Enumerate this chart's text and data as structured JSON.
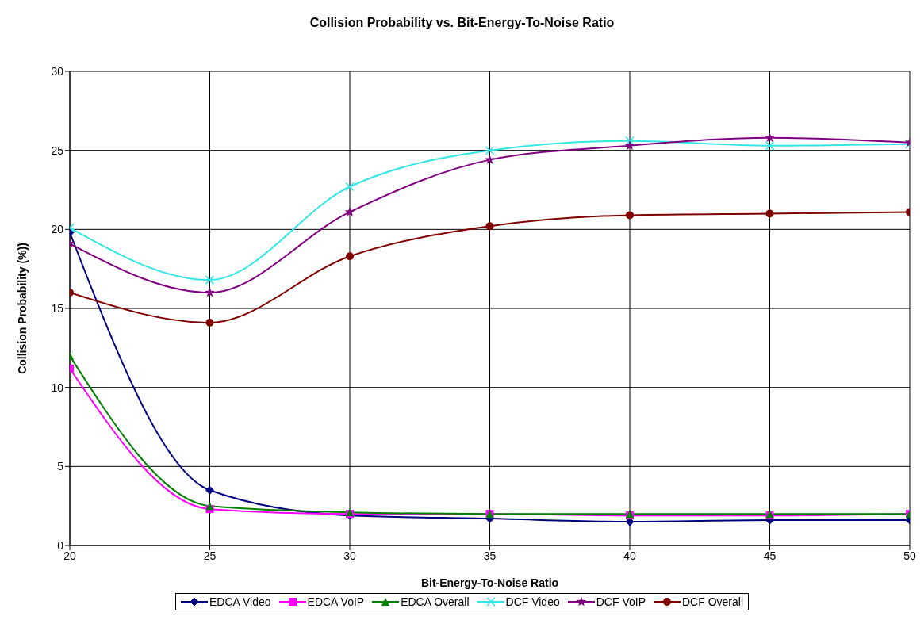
{
  "chart_data": {
    "type": "line",
    "title": "Collision Probability vs. Bit-Energy-To-Noise Ratio",
    "xlabel": "Bit-Energy-To-Noise Ratio",
    "ylabel": "Collision Probability (%))",
    "x": [
      20,
      25,
      30,
      35,
      40,
      45,
      50
    ],
    "series": [
      {
        "name": "EDCA Video",
        "color": "#000080",
        "marker": "diamond",
        "values": [
          19.8,
          3.5,
          1.9,
          1.7,
          1.5,
          1.6,
          1.6
        ]
      },
      {
        "name": "EDCA VoIP",
        "color": "#ff00ff",
        "marker": "square",
        "values": [
          11.2,
          2.3,
          2.0,
          2.0,
          1.9,
          1.9,
          2.0
        ]
      },
      {
        "name": "EDCA Overall",
        "color": "#008000",
        "marker": "triangle",
        "values": [
          12.0,
          2.5,
          2.1,
          2.0,
          2.0,
          2.0,
          2.0
        ]
      },
      {
        "name": "DCF Video",
        "color": "#33e6e6",
        "marker": "cross",
        "values": [
          20.1,
          16.8,
          22.7,
          25.0,
          25.6,
          25.3,
          25.4
        ]
      },
      {
        "name": "DCF VoIP",
        "color": "#800080",
        "marker": "star",
        "values": [
          19.1,
          16.0,
          21.1,
          24.4,
          25.3,
          25.8,
          25.5
        ]
      },
      {
        "name": "DCF Overall",
        "color": "#800000",
        "marker": "circle",
        "values": [
          16.0,
          14.1,
          18.3,
          20.2,
          20.9,
          21.0,
          21.1
        ]
      }
    ],
    "xlim": [
      20,
      50
    ],
    "xticks": [
      20,
      25,
      30,
      35,
      40,
      45,
      50
    ],
    "ylim": [
      0,
      30
    ],
    "yticks": [
      0,
      5,
      10,
      15,
      20,
      25,
      30
    ],
    "grid": true,
    "legend": "bottom",
    "line_style": "solid"
  }
}
